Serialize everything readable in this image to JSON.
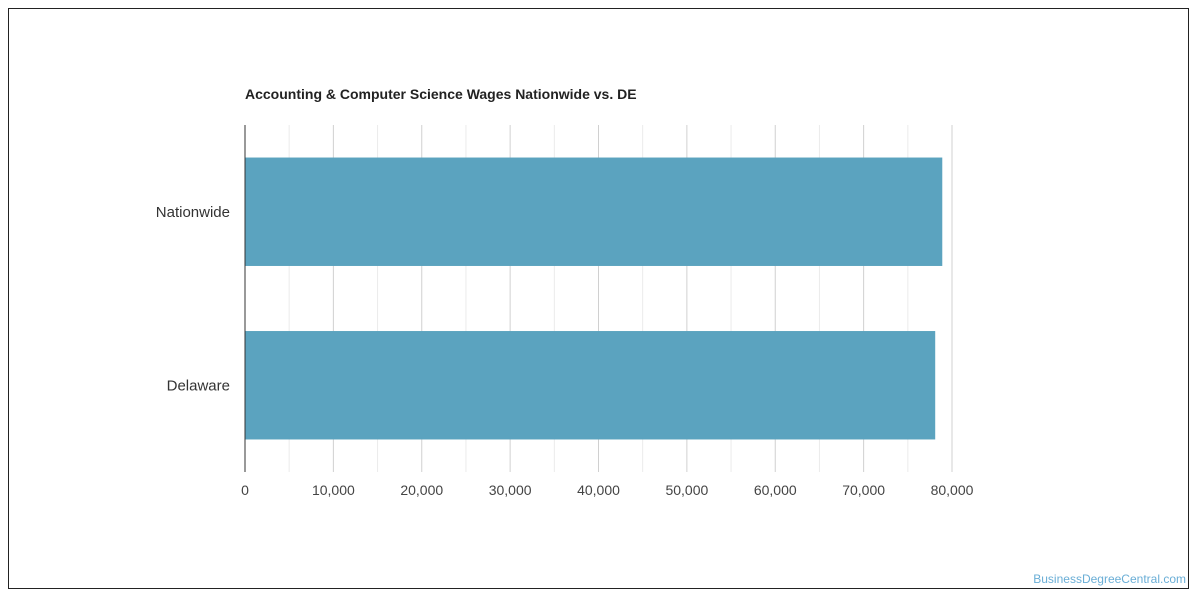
{
  "chart_data": {
    "type": "bar",
    "orientation": "horizontal",
    "title": "Accounting & Computer Science Wages Nationwide vs. DE",
    "categories": [
      "Nationwide",
      "Delaware"
    ],
    "values": [
      78900,
      78100
    ],
    "xlim": [
      0,
      80000
    ],
    "xticks": [
      0,
      10000,
      20000,
      30000,
      40000,
      50000,
      60000,
      70000,
      80000
    ],
    "xtick_labels": [
      "0",
      "10,000",
      "20,000",
      "30,000",
      "40,000",
      "50,000",
      "60,000",
      "70,000",
      "80,000"
    ],
    "grid": true,
    "legend": "none",
    "bar_color": "#5ba3bf",
    "grid_color": "#dddddd"
  },
  "watermark": "BusinessDegreeCentral.com"
}
